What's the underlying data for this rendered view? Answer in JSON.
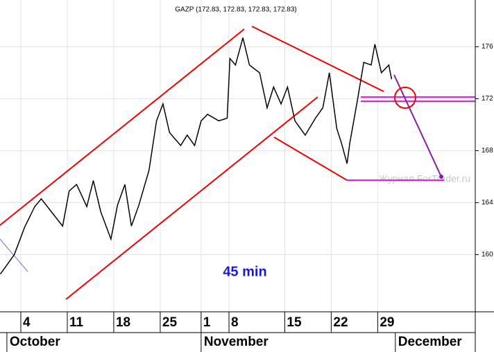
{
  "chart_data": {
    "type": "line",
    "title": "GAZP (172.83, 172.83, 172.83, 172.83)",
    "annotation": "45 min",
    "watermark": "Журнал ForTrader.ru",
    "xlim": [
      -2.24,
      48.9
    ],
    "ylim": [
      155.6,
      179.6
    ],
    "yticks": [
      160,
      164,
      168,
      172,
      176
    ],
    "xticks": [
      {
        "value": 0,
        "label": "4"
      },
      {
        "value": 5,
        "label": "11"
      },
      {
        "value": 10,
        "label": "18"
      },
      {
        "value": 15,
        "label": "25"
      },
      {
        "value": 19.4,
        "label": "1"
      },
      {
        "value": 22.4,
        "label": "8"
      },
      {
        "value": 28.4,
        "label": "15"
      },
      {
        "value": 33.4,
        "label": "22"
      },
      {
        "value": 38.4,
        "label": "29"
      }
    ],
    "month_labels": [
      {
        "value": -1.5,
        "label": "October"
      },
      {
        "value": 19.4,
        "label": "November"
      },
      {
        "value": 40.3,
        "label": "December"
      }
    ],
    "grid": true,
    "series": [
      {
        "name": "GAZP",
        "color": "#000000",
        "x": [
          -2.2,
          -0.7,
          0.4,
          1.5,
          2.2,
          3.4,
          4.5,
          5.2,
          6.0,
          7.1,
          7.8,
          8.6,
          9.7,
          10.4,
          11.2,
          11.9,
          12.7,
          13.8,
          14.6,
          15.3,
          16.0,
          17.2,
          17.9,
          18.7,
          19.4,
          20.1,
          21.3,
          22.2,
          22.5,
          23.1,
          23.9,
          24.6,
          25.7,
          26.5,
          27.2,
          28.0,
          28.7,
          29.5,
          30.6,
          31.7,
          32.5,
          33.2,
          34.0,
          34.5,
          35.1,
          35.4,
          36.2,
          36.9,
          37.7,
          38.1,
          38.8,
          39.6,
          39.9
        ],
        "values": [
          158.5,
          160,
          162.1,
          163.7,
          164.3,
          163.2,
          162.2,
          164.9,
          165.4,
          163.7,
          165.7,
          163.3,
          161.2,
          163.8,
          165.4,
          162.2,
          163.8,
          166.5,
          170.3,
          171.6,
          169.4,
          168.4,
          169.2,
          168.4,
          170.3,
          170.8,
          170.3,
          170.5,
          175.1,
          174.6,
          176.7,
          174.6,
          174.0,
          171.3,
          172.9,
          171.6,
          172.9,
          170.3,
          169.2,
          170.5,
          171.3,
          174.0,
          169.7,
          168.6,
          167.0,
          168.6,
          171.8,
          174.8,
          174.6,
          176.2,
          174.0,
          174.6,
          173.5
        ]
      }
    ]
  }
}
